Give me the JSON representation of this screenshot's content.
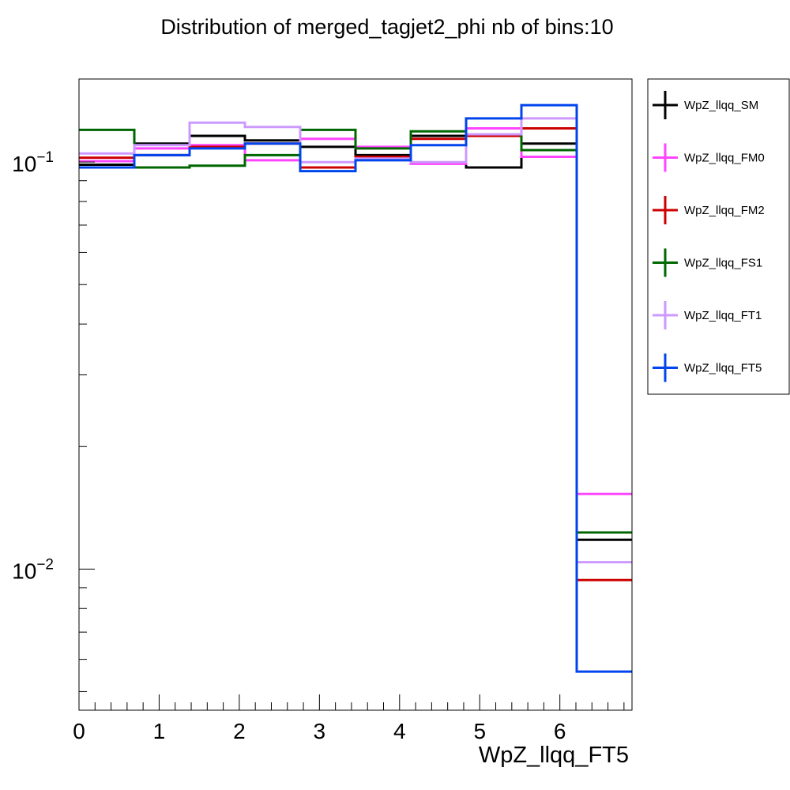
{
  "chart_data": {
    "type": "line",
    "title": "Distribution of merged_tagjet2_phi nb of bins:10",
    "xlabel": "WpZ_llqq_FT5",
    "ylabel": "",
    "xlim": [
      0,
      6.9
    ],
    "ylim": [
      0.0045,
      0.16
    ],
    "log_y": true,
    "grid": false,
    "legend_position": "right",
    "bin_edges": [
      0,
      0.69,
      1.38,
      2.07,
      2.76,
      3.45,
      4.14,
      4.83,
      5.52,
      6.21,
      6.9
    ],
    "x_ticks": [
      "0",
      "1",
      "2",
      "3",
      "4",
      "5",
      "6"
    ],
    "y_ticks": [
      {
        "base": "10",
        "exp": "−1"
      },
      {
        "base": "10",
        "exp": "−2"
      }
    ],
    "series": [
      {
        "name": "WpZ_llqq_SM",
        "color": "#000000",
        "values": [
          0.0985,
          0.111,
          0.116,
          0.113,
          0.109,
          0.104,
          0.116,
          0.097,
          0.111,
          0.0118
        ]
      },
      {
        "name": "WpZ_llqq_FM0",
        "color": "#ff44ff",
        "values": [
          0.1005,
          0.108,
          0.11,
          0.101,
          0.114,
          0.109,
          0.099,
          0.121,
          0.103,
          0.0153
        ]
      },
      {
        "name": "WpZ_llqq_FM2",
        "color": "#cc0000",
        "values": [
          0.1025,
          0.104,
          0.109,
          0.111,
          0.097,
          0.103,
          0.114,
          0.116,
          0.121,
          0.0094
        ]
      },
      {
        "name": "WpZ_llqq_FS1",
        "color": "#006600",
        "values": [
          0.12,
          0.097,
          0.098,
          0.104,
          0.12,
          0.108,
          0.119,
          0.117,
          0.107,
          0.0123
        ]
      },
      {
        "name": "WpZ_llqq_FT1",
        "color": "#cc99ff",
        "values": [
          0.105,
          0.11,
          0.125,
          0.122,
          0.1,
          0.102,
          0.1,
          0.117,
          0.128,
          0.0104
        ]
      },
      {
        "name": "WpZ_llqq_FT5",
        "color": "#0044ee",
        "values": [
          0.097,
          0.104,
          0.108,
          0.111,
          0.095,
          0.101,
          0.11,
          0.128,
          0.138,
          0.0056
        ]
      }
    ]
  }
}
